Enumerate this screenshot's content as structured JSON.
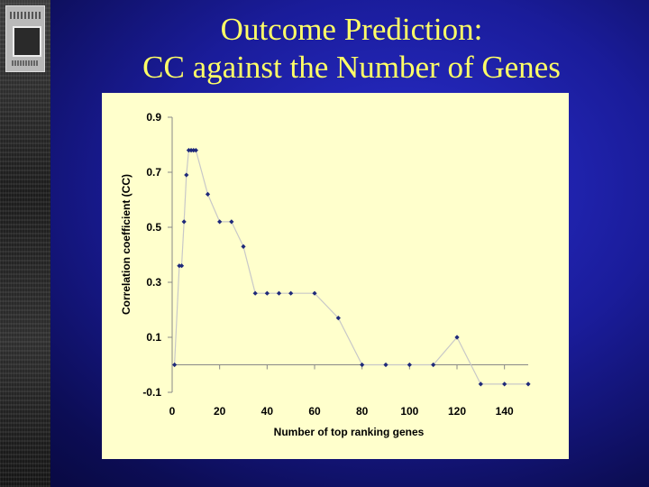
{
  "slide": {
    "title_line1": "Outcome Prediction:",
    "title_line2": "CC against the Number of Genes"
  },
  "colors": {
    "background": "#1a1c9a",
    "title": "#ffff66",
    "plot_background": "#ffffcc",
    "marker": "#1f2a7a",
    "line": "#c8c8c8"
  },
  "chart_data": {
    "type": "line",
    "title": "",
    "xlabel": "Number of top ranking genes",
    "ylabel": "Correlation coefficient (CC)",
    "xlim": [
      0,
      150
    ],
    "ylim": [
      -0.1,
      0.9
    ],
    "xticks": [
      0,
      20,
      40,
      60,
      80,
      100,
      120,
      140
    ],
    "yticks": [
      -0.1,
      0.1,
      0.3,
      0.5,
      0.7,
      0.9
    ],
    "grid": false,
    "legend": "none",
    "series": [
      {
        "x": [
          1,
          3,
          4,
          5,
          6,
          7,
          8,
          9,
          10,
          15,
          20,
          25,
          30,
          35,
          40,
          45,
          50,
          60,
          70,
          80,
          90,
          100,
          110,
          120,
          130,
          140,
          150
        ],
        "y": [
          0.0,
          0.36,
          0.36,
          0.52,
          0.69,
          0.78,
          0.78,
          0.78,
          0.78,
          0.62,
          0.52,
          0.52,
          0.43,
          0.26,
          0.26,
          0.26,
          0.26,
          0.26,
          0.17,
          0.0,
          0.0,
          0.0,
          0.0,
          0.1,
          -0.07,
          -0.07,
          -0.07
        ]
      }
    ]
  }
}
